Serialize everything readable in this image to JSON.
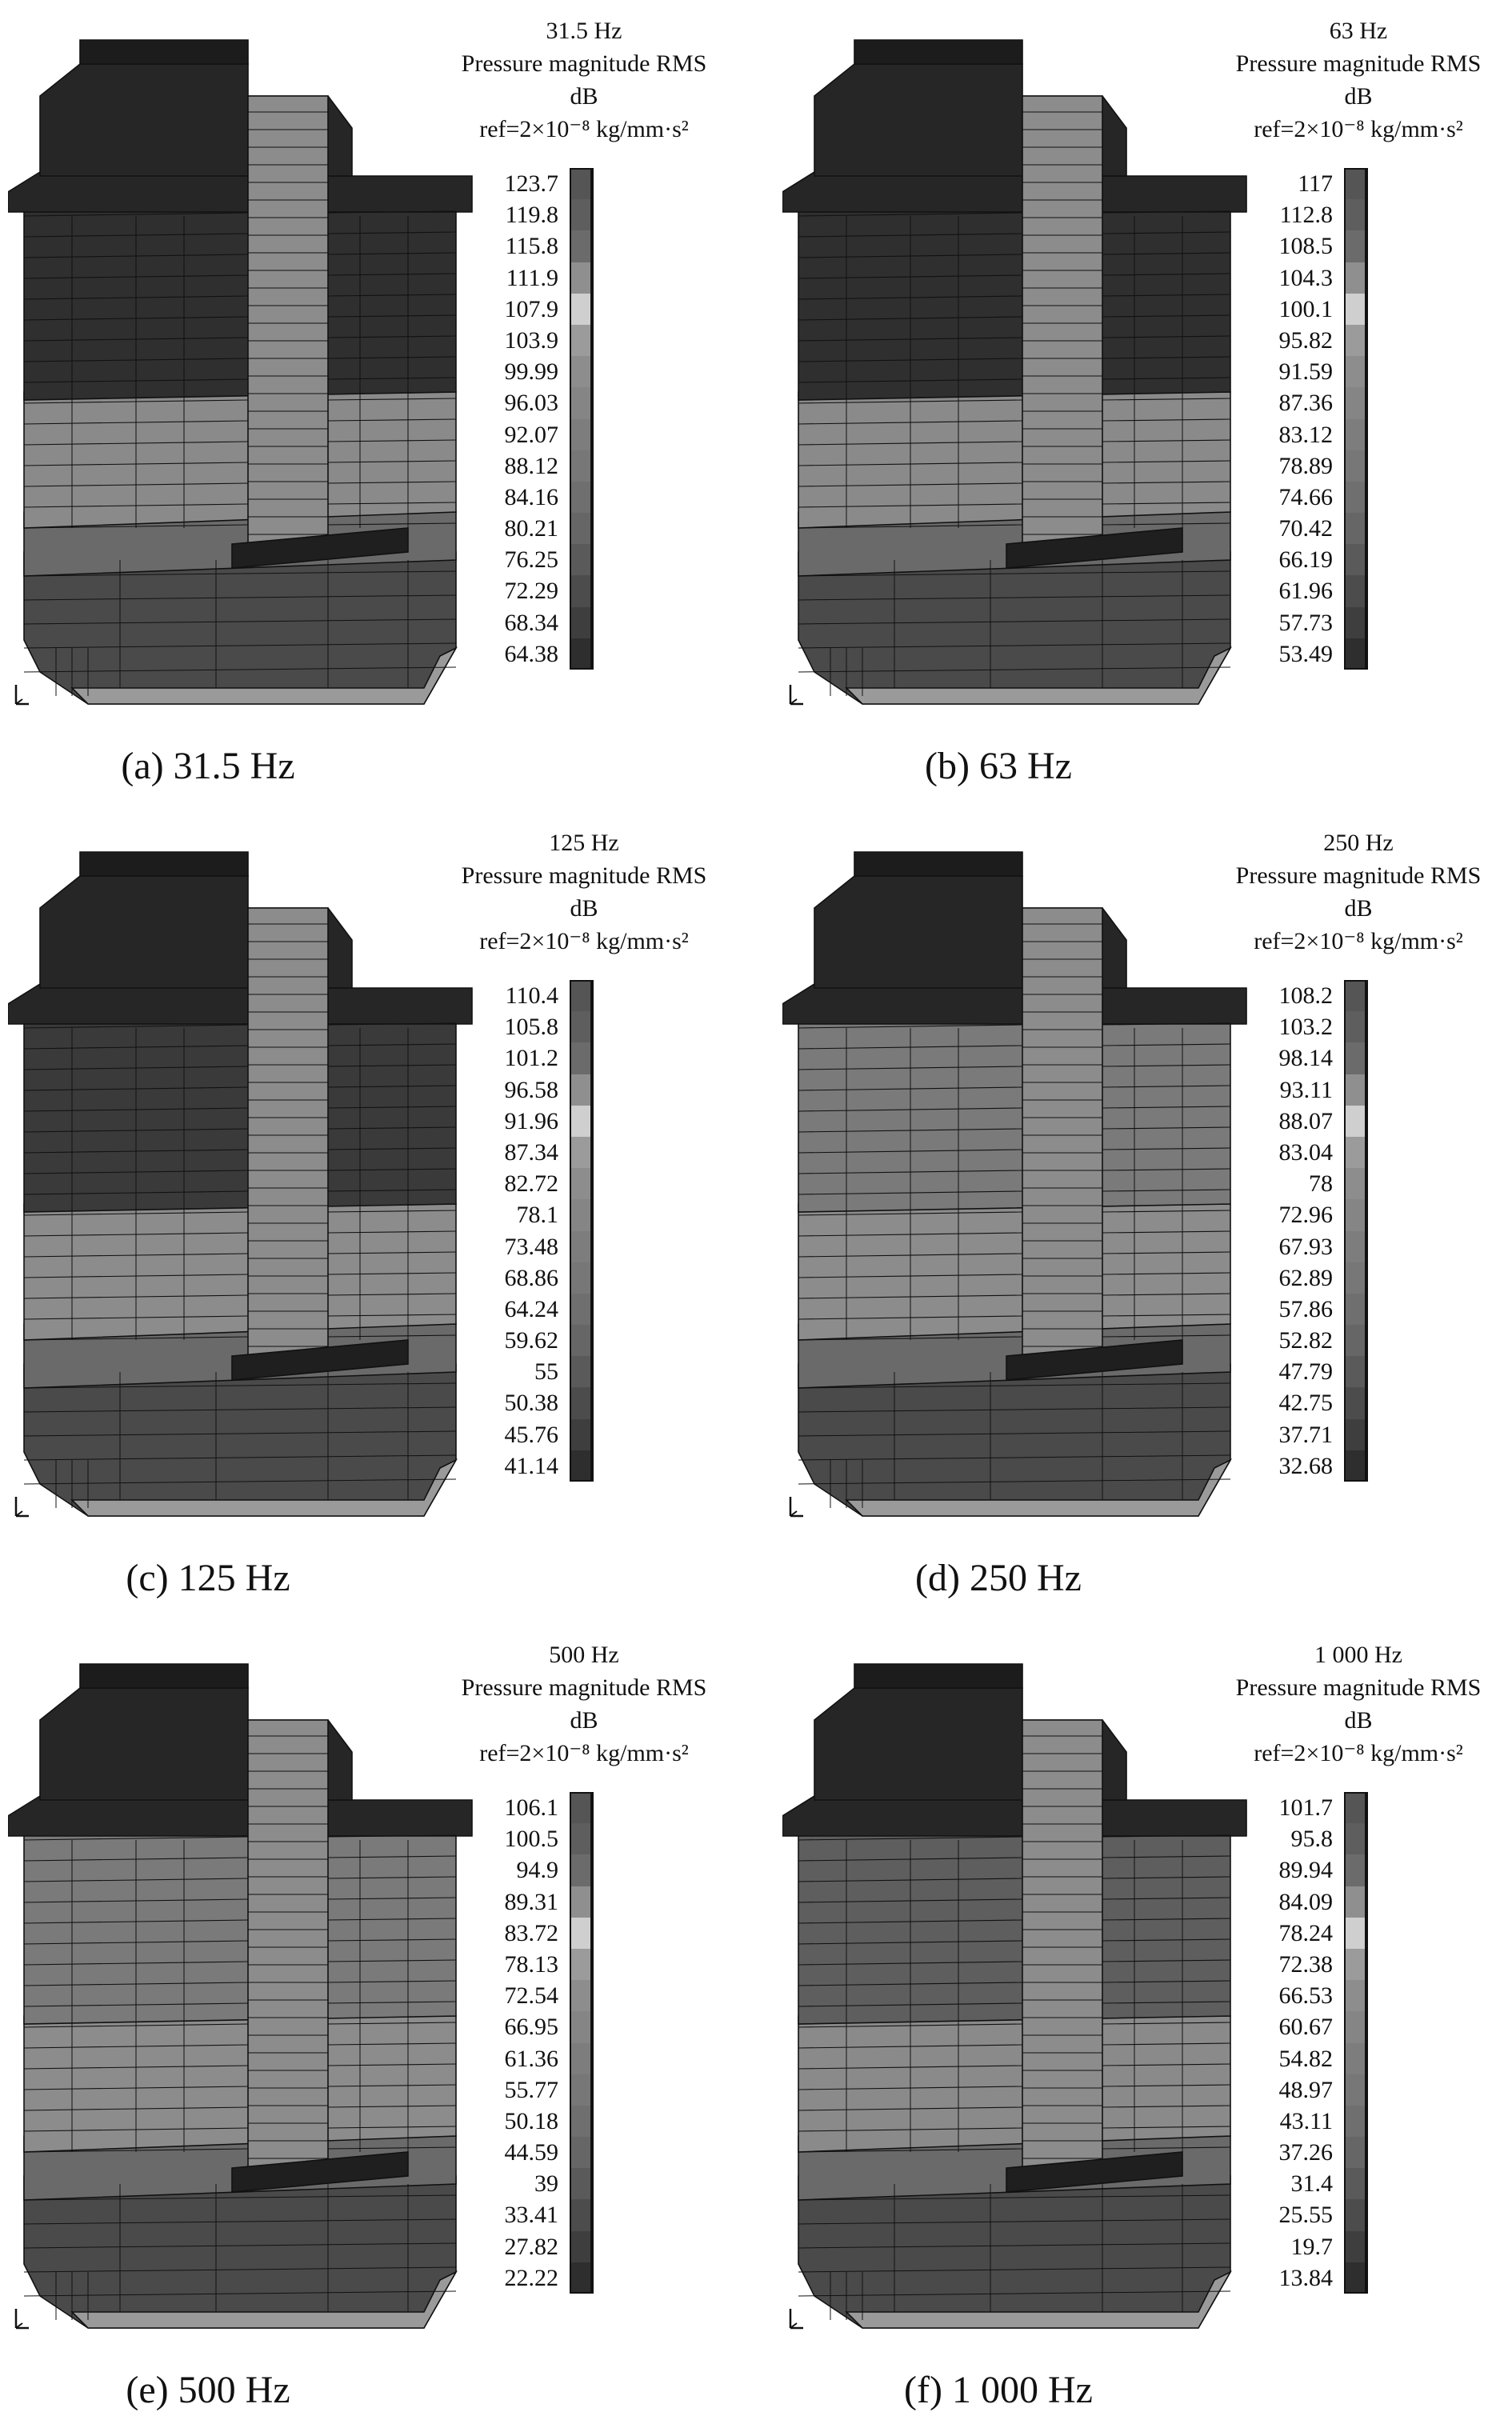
{
  "panels": [
    {
      "caption": "(a) 31.5 Hz",
      "freq": "31.5 Hz",
      "quantity": "Pressure magnitude RMS",
      "unit": "dB",
      "reference": "ref=2×10⁻⁸ kg/mm·s²",
      "scale": [
        "123.7",
        "119.8",
        "115.8",
        "111.9",
        "107.9",
        "103.9",
        "99.99",
        "96.03",
        "92.07",
        "88.12",
        "84.16",
        "80.21",
        "76.25",
        "72.29",
        "68.34",
        "64.38"
      ],
      "shades": [
        "#555555",
        "#5e5e5e",
        "#6b6b6b",
        "#8f8f8f",
        "#cfcfcf",
        "#9b9b9b",
        "#8d8d8d",
        "#858585",
        "#7d7d7d",
        "#777777",
        "#6f6f6f",
        "#666666",
        "#5a5a5a",
        "#4c4c4c",
        "#3e3e3e",
        "#2e2e2e"
      ]
    },
    {
      "caption": "(b) 63 Hz",
      "freq": "63 Hz",
      "quantity": "Pressure magnitude RMS",
      "unit": "dB",
      "reference": "ref=2×10⁻⁸ kg/mm·s²",
      "scale": [
        "117",
        "112.8",
        "108.5",
        "104.3",
        "100.1",
        "95.82",
        "91.59",
        "87.36",
        "83.12",
        "78.89",
        "74.66",
        "70.42",
        "66.19",
        "61.96",
        "57.73",
        "53.49"
      ],
      "shades": [
        "#555555",
        "#5e5e5e",
        "#6b6b6b",
        "#8f8f8f",
        "#cfcfcf",
        "#9b9b9b",
        "#8d8d8d",
        "#858585",
        "#7d7d7d",
        "#777777",
        "#6f6f6f",
        "#666666",
        "#5a5a5a",
        "#4c4c4c",
        "#3e3e3e",
        "#2e2e2e"
      ]
    },
    {
      "caption": "(c) 125 Hz",
      "freq": "125 Hz",
      "quantity": "Pressure magnitude RMS",
      "unit": "dB",
      "reference": "ref=2×10⁻⁸ kg/mm·s²",
      "scale": [
        "110.4",
        "105.8",
        "101.2",
        "96.58",
        "91.96",
        "87.34",
        "82.72",
        "78.1",
        "73.48",
        "68.86",
        "64.24",
        "59.62",
        "55",
        "50.38",
        "45.76",
        "41.14"
      ],
      "shades": [
        "#555555",
        "#5e5e5e",
        "#6b6b6b",
        "#8f8f8f",
        "#cfcfcf",
        "#9b9b9b",
        "#8d8d8d",
        "#858585",
        "#7d7d7d",
        "#777777",
        "#6f6f6f",
        "#666666",
        "#5a5a5a",
        "#4c4c4c",
        "#3e3e3e",
        "#2e2e2e"
      ]
    },
    {
      "caption": "(d) 250 Hz",
      "freq": "250 Hz",
      "quantity": "Pressure magnitude RMS",
      "unit": "dB",
      "reference": "ref=2×10⁻⁸ kg/mm·s²",
      "scale": [
        "108.2",
        "103.2",
        "98.14",
        "93.11",
        "88.07",
        "83.04",
        "78",
        "72.96",
        "67.93",
        "62.89",
        "57.86",
        "52.82",
        "47.79",
        "42.75",
        "37.71",
        "32.68"
      ],
      "shades": [
        "#555555",
        "#5e5e5e",
        "#6b6b6b",
        "#8f8f8f",
        "#cfcfcf",
        "#9b9b9b",
        "#8d8d8d",
        "#858585",
        "#7d7d7d",
        "#777777",
        "#6f6f6f",
        "#666666",
        "#5a5a5a",
        "#4c4c4c",
        "#3e3e3e",
        "#2e2e2e"
      ]
    },
    {
      "caption": "(e) 500 Hz",
      "freq": "500 Hz",
      "quantity": "Pressure magnitude RMS",
      "unit": "dB",
      "reference": "ref=2×10⁻⁸ kg/mm·s²",
      "scale": [
        "106.1",
        "100.5",
        "94.9",
        "89.31",
        "83.72",
        "78.13",
        "72.54",
        "66.95",
        "61.36",
        "55.77",
        "50.18",
        "44.59",
        "39",
        "33.41",
        "27.82",
        "22.22"
      ],
      "shades": [
        "#555555",
        "#5e5e5e",
        "#6b6b6b",
        "#8f8f8f",
        "#cfcfcf",
        "#9b9b9b",
        "#8d8d8d",
        "#858585",
        "#7d7d7d",
        "#777777",
        "#6f6f6f",
        "#666666",
        "#5a5a5a",
        "#4c4c4c",
        "#3e3e3e",
        "#2e2e2e"
      ]
    },
    {
      "caption": "(f) 1 000 Hz",
      "freq": "1 000 Hz",
      "quantity": "Pressure magnitude RMS",
      "unit": "dB",
      "reference": "ref=2×10⁻⁸ kg/mm·s²",
      "scale": [
        "101.7",
        "95.8",
        "89.94",
        "84.09",
        "78.24",
        "72.38",
        "66.53",
        "60.67",
        "54.82",
        "48.97",
        "43.11",
        "37.26",
        "31.4",
        "25.55",
        "19.7",
        "13.84"
      ],
      "shades": [
        "#555555",
        "#5e5e5e",
        "#6b6b6b",
        "#8f8f8f",
        "#cfcfcf",
        "#9b9b9b",
        "#8d8d8d",
        "#858585",
        "#7d7d7d",
        "#777777",
        "#6f6f6f",
        "#666666",
        "#5a5a5a",
        "#4c4c4c",
        "#3e3e3e",
        "#2e2e2e"
      ]
    }
  ],
  "model_shades": [
    {
      "panel": "a",
      "upper": "#2f2f2f",
      "mid": "#8a8a8a",
      "band": "#6a6a6a",
      "lower": "#4a4a4a",
      "top": "#262626",
      "shaft": "#8c8c8c"
    },
    {
      "panel": "b",
      "upper": "#2f2f2f",
      "mid": "#8a8a8a",
      "band": "#6a6a6a",
      "lower": "#4a4a4a",
      "top": "#262626",
      "shaft": "#8c8c8c"
    },
    {
      "panel": "c",
      "upper": "#3a3a3a",
      "mid": "#8c8c8c",
      "band": "#6a6a6a",
      "lower": "#4a4a4a",
      "top": "#262626",
      "shaft": "#8c8c8c"
    },
    {
      "panel": "d",
      "upper": "#7a7a7a",
      "mid": "#8c8c8c",
      "band": "#6a6a6a",
      "lower": "#4a4a4a",
      "top": "#262626",
      "shaft": "#8c8c8c"
    },
    {
      "panel": "e",
      "upper": "#7a7a7a",
      "mid": "#8c8c8c",
      "band": "#6a6a6a",
      "lower": "#4a4a4a",
      "top": "#262626",
      "shaft": "#8c8c8c"
    },
    {
      "panel": "f",
      "upper": "#5e5e5e",
      "mid": "#8a8a8a",
      "band": "#6a6a6a",
      "lower": "#4a4a4a",
      "top": "#262626",
      "shaft": "#8c8c8c"
    }
  ]
}
